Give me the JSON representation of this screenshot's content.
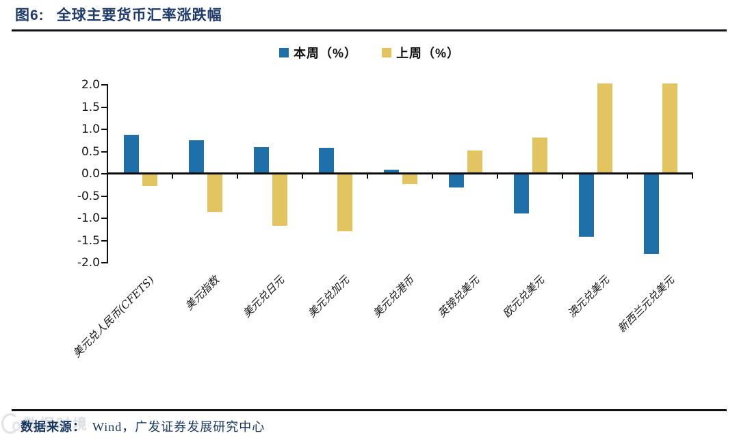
{
  "header": {
    "figure_prefix": "图6:",
    "figure_title": "全球主要货币汇率涨跌幅"
  },
  "legend": {
    "items": [
      {
        "label": "本周（%）"
      },
      {
        "label": "上周（%）"
      }
    ]
  },
  "footer": {
    "source_label": "数据来源：",
    "source_text": "Wind，广发证券发展研究中心"
  },
  "watermark": {
    "text": "数据时境"
  },
  "chart_data": {
    "type": "bar",
    "title": "图6: 全球主要货币汇率涨跌幅",
    "categories": [
      "美元兑人民币(CFETS)",
      "美元指数",
      "美元兑日元",
      "美元兑加元",
      "美元兑港币",
      "英镑兑美元",
      "欧元兑美元",
      "澳元兑美元",
      "新西兰元兑美元"
    ],
    "series": [
      {
        "name": "本周（%）",
        "color": "#1F6FA8",
        "values": [
          0.85,
          0.73,
          0.57,
          0.55,
          0.06,
          -0.29,
          -0.87,
          -1.4,
          -1.79
        ]
      },
      {
        "name": "上周（%）",
        "color": "#E2C460",
        "values": [
          -0.26,
          -0.85,
          -1.15,
          -1.28,
          -0.22,
          0.5,
          0.78,
          2.0,
          2.0
        ]
      }
    ],
    "ylim": [
      -2.0,
      2.0
    ],
    "ytick_step": 0.5,
    "ytick_labels": [
      "2.0",
      "1.5",
      "1.0",
      "0.5",
      "0.0",
      "-0.5",
      "-1.0",
      "-1.5",
      "-2.0"
    ],
    "grid": false,
    "legend_position": "top",
    "axis_color": "#111111"
  }
}
